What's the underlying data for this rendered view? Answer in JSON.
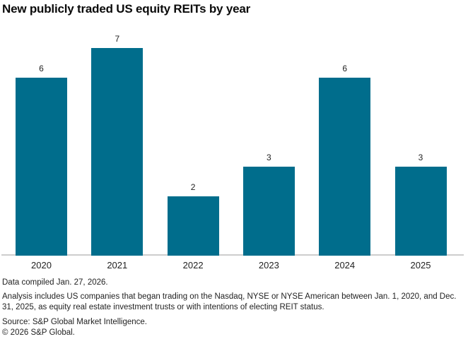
{
  "chart_data": {
    "type": "bar",
    "title": "New publicly traded US equity REITs by year",
    "categories": [
      "2020",
      "2021",
      "2022",
      "2023",
      "2024",
      "2025"
    ],
    "values": [
      6,
      7,
      2,
      3,
      6,
      3
    ],
    "xlabel": "",
    "ylabel": "",
    "ylim": [
      0,
      7
    ],
    "grid": false,
    "legend": false,
    "value_labels_shown": true,
    "bar_color": "#006d8c",
    "axis_line_color": "#cdcdcd",
    "label_color": "#1f1f1f"
  },
  "footer": {
    "compiled": "Data compiled Jan. 27, 2026.",
    "analysis": "Analysis includes US companies that began trading on the Nasdaq, NYSE or NYSE American between Jan. 1, 2020, and Dec. 31, 2025, as equity real estate investment trusts or with intentions of electing REIT status.",
    "source": "Source: S&P Global Market Intelligence.",
    "copyright": "© 2026 S&P Global."
  }
}
